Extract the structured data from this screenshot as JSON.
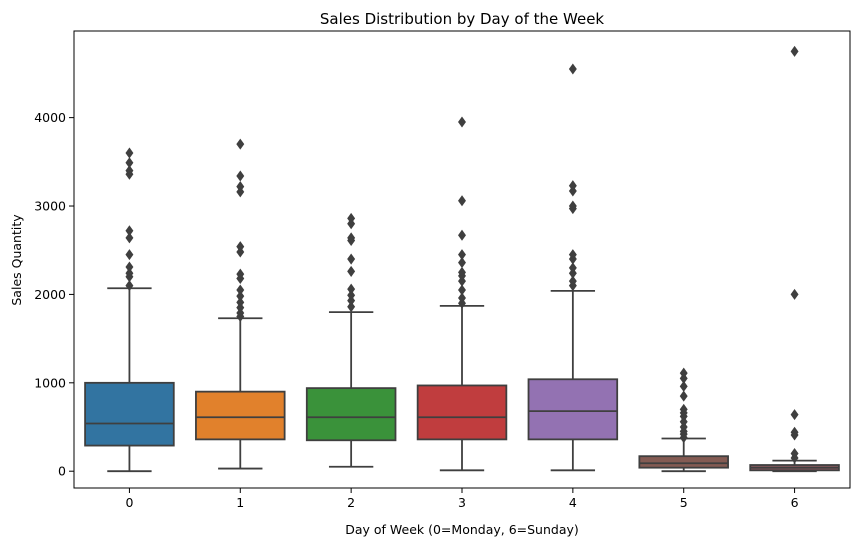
{
  "chart_data": {
    "type": "box",
    "title": "Sales Distribution by Day of the Week",
    "xlabel": "Day of Week (0=Monday, 6=Sunday)",
    "ylabel": "Sales Quantity",
    "ylim": [
      -190,
      4980
    ],
    "yticks": [
      0,
      1000,
      2000,
      3000,
      4000
    ],
    "grid": false,
    "categories": [
      "0",
      "1",
      "2",
      "3",
      "4",
      "5",
      "6"
    ],
    "series": [
      {
        "category": "0",
        "color": "#3274a1",
        "whisker_low": 0,
        "q1": 290,
        "median": 540,
        "q3": 1000,
        "whisker_high": 2070,
        "outliers": [
          2100,
          2200,
          2240,
          2310,
          2450,
          2640,
          2720,
          3360,
          3400,
          3490,
          3600
        ]
      },
      {
        "category": "1",
        "color": "#e1812c",
        "whisker_low": 30,
        "q1": 360,
        "median": 610,
        "q3": 900,
        "whisker_high": 1730,
        "outliers": [
          1750,
          1790,
          1850,
          1910,
          1980,
          2050,
          2180,
          2230,
          2480,
          2540,
          3160,
          3220,
          3340,
          3700
        ]
      },
      {
        "category": "2",
        "color": "#3a923a",
        "whisker_low": 50,
        "q1": 350,
        "median": 610,
        "q3": 940,
        "whisker_high": 1800,
        "outliers": [
          1860,
          1930,
          1990,
          2060,
          2260,
          2400,
          2610,
          2640,
          2800,
          2860
        ]
      },
      {
        "category": "3",
        "color": "#c03d3e",
        "whisker_low": 10,
        "q1": 360,
        "median": 610,
        "q3": 970,
        "whisker_high": 1870,
        "outliers": [
          1900,
          1960,
          2050,
          2150,
          2210,
          2250,
          2360,
          2450,
          2670,
          3060,
          3950
        ]
      },
      {
        "category": "4",
        "color": "#9372b2",
        "whisker_low": 10,
        "q1": 360,
        "median": 680,
        "q3": 1040,
        "whisker_high": 2040,
        "outliers": [
          2100,
          2150,
          2240,
          2300,
          2400,
          2450,
          2970,
          3000,
          3170,
          3230,
          4550
        ]
      },
      {
        "category": "5",
        "color": "#845b53",
        "whisker_low": 0,
        "q1": 40,
        "median": 90,
        "q3": 170,
        "whisker_high": 370,
        "outliers": [
          380,
          420,
          450,
          500,
          560,
          620,
          660,
          700,
          850,
          960,
          1050,
          1110
        ]
      },
      {
        "category": "6",
        "color": "#8d5b61",
        "whisker_low": 0,
        "q1": 10,
        "median": 40,
        "q3": 70,
        "whisker_high": 120,
        "outliers": [
          150,
          200,
          410,
          440,
          640,
          2000,
          4750
        ]
      }
    ]
  }
}
